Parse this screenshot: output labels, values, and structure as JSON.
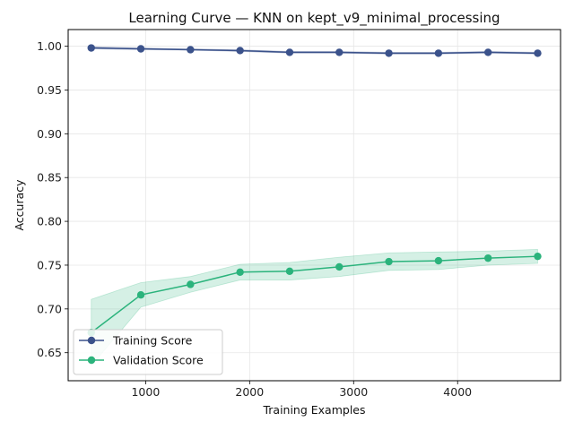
{
  "chart_data": {
    "type": "line",
    "title": "Learning Curve — KNN on kept_v9_minimal_processing",
    "xlabel": "Training Examples",
    "ylabel": "Accuracy",
    "xlim": [
      255,
      4990
    ],
    "ylim": [
      0.618,
      1.019
    ],
    "xticks": [
      1000,
      2000,
      3000,
      4000
    ],
    "xtick_labels": [
      "1000",
      "2000",
      "3000",
      "4000"
    ],
    "yticks": [
      0.65,
      0.7,
      0.75,
      0.8,
      0.85,
      0.9,
      0.95,
      1.0
    ],
    "ytick_labels": [
      "0.65",
      "0.70",
      "0.75",
      "0.80",
      "0.85",
      "0.90",
      "0.95",
      "1.00"
    ],
    "grid": true,
    "legend_position": "lower-left",
    "x": [
      477,
      954,
      1431,
      1908,
      2385,
      2862,
      3339,
      3816,
      4293,
      4770
    ],
    "series": [
      {
        "name": "Training Score",
        "color": "#3b528b",
        "values": [
          0.998,
          0.997,
          0.996,
          0.995,
          0.993,
          0.993,
          0.992,
          0.992,
          0.993,
          0.992
        ],
        "band_lower": [
          0.997,
          0.996,
          0.9955,
          0.994,
          0.992,
          0.992,
          0.991,
          0.991,
          0.992,
          0.991
        ],
        "band_upper": [
          0.9995,
          0.998,
          0.997,
          0.996,
          0.994,
          0.994,
          0.993,
          0.993,
          0.994,
          0.993
        ]
      },
      {
        "name": "Validation Score",
        "color": "#2bb37c",
        "values": [
          0.673,
          0.716,
          0.728,
          0.742,
          0.743,
          0.748,
          0.754,
          0.755,
          0.758,
          0.76
        ],
        "band_lower": [
          0.635,
          0.702,
          0.719,
          0.733,
          0.733,
          0.737,
          0.744,
          0.745,
          0.75,
          0.752
        ],
        "band_upper": [
          0.711,
          0.73,
          0.737,
          0.751,
          0.753,
          0.759,
          0.764,
          0.765,
          0.766,
          0.768
        ]
      }
    ]
  }
}
